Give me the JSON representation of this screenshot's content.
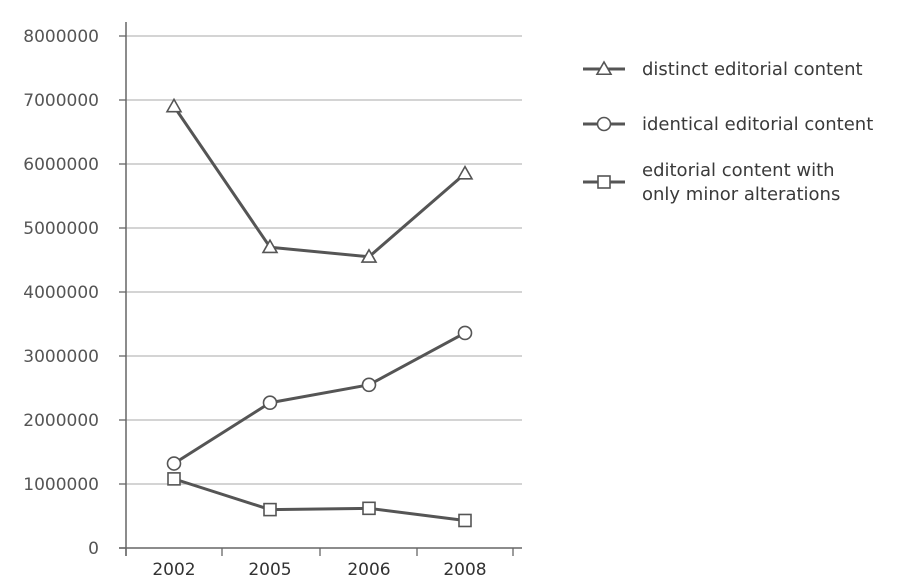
{
  "chart_data": {
    "type": "line",
    "categories": [
      "2002",
      "2005",
      "2006",
      "2008"
    ],
    "ylim": [
      0,
      8000000
    ],
    "yticks": [
      "0",
      "1000000",
      "2000000",
      "3000000",
      "4000000",
      "5000000",
      "6000000",
      "7000000",
      "8000000"
    ],
    "grid": true,
    "legend_position": "right",
    "series": [
      {
        "name": "distinct editorial content",
        "marker": "triangle",
        "values": [
          6900000,
          4700000,
          4550000,
          5850000
        ]
      },
      {
        "name": "identical editorial content",
        "marker": "circle",
        "values": [
          1320000,
          2270000,
          2550000,
          3360000
        ]
      },
      {
        "name": "editorial content with only minor alterations",
        "marker": "square",
        "name_lines": [
          "editorial content with",
          "only minor alterations"
        ],
        "values": [
          1080000,
          600000,
          620000,
          430000
        ]
      }
    ],
    "colors": {
      "line": "#555555",
      "grid": "#bbbbbb",
      "marker_fill": "#ffffff"
    }
  }
}
